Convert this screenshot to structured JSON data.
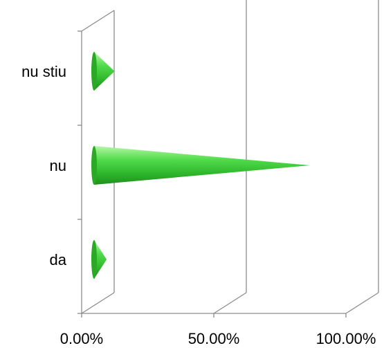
{
  "chart_data": {
    "type": "bar",
    "orientation": "horizontal",
    "style": "3d-cone",
    "categories": [
      "da",
      "nu",
      "nu stiu"
    ],
    "values": [
      5.0,
      82.0,
      8.0
    ],
    "xlim": [
      0,
      100
    ],
    "x_ticks": [
      0,
      50,
      100
    ],
    "x_tick_labels": [
      "0.00%",
      "50.00%",
      "100.00%"
    ],
    "grid": true,
    "legend": "none",
    "colors": {
      "bar_light": "#b6f7a8",
      "bar_mid": "#3fcf3b",
      "bar_dark": "#1f8f1c",
      "grid": "#8c8c8c"
    }
  }
}
